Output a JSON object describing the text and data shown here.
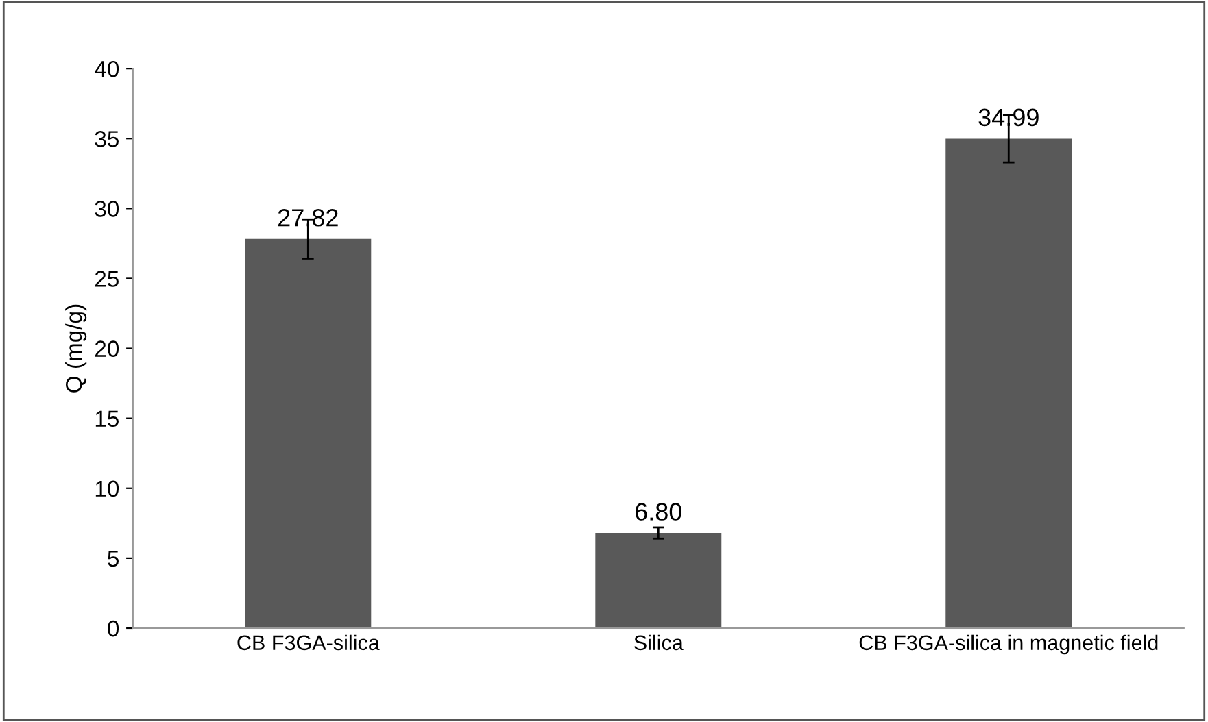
{
  "chart_data": {
    "type": "bar",
    "ylabel": "Q (mg/g)",
    "categories": [
      "CB F3GA-silica",
      "Silica",
      "CB F3GA-silica in magnetic field"
    ],
    "values": [
      27.82,
      6.8,
      34.99
    ],
    "value_labels": [
      "27.82",
      "6.80",
      "34.99"
    ],
    "errors": [
      1.4,
      0.4,
      1.7
    ],
    "color": "#595959",
    "ylim": [
      0,
      40
    ],
    "yticks": [
      0,
      5,
      10,
      15,
      20,
      25,
      30,
      35,
      40
    ],
    "grid": false,
    "legend": false
  }
}
